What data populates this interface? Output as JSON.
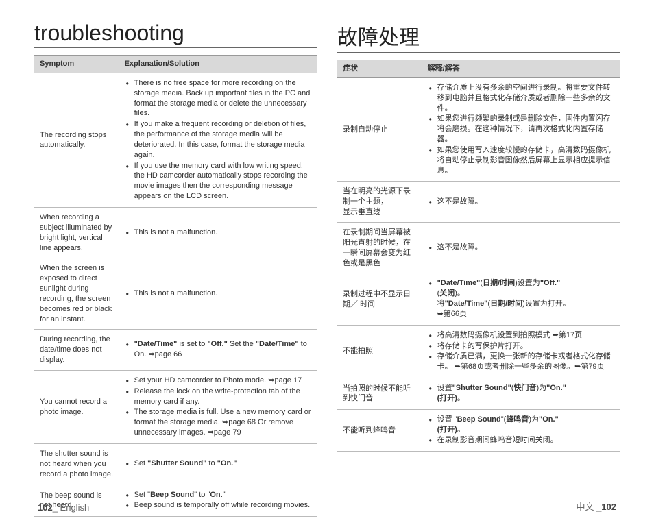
{
  "left": {
    "title": "troubleshooting",
    "header_symptom": "Symptom",
    "header_solution": "Explanation/Solution",
    "rows": [
      {
        "symptom": "The recording stops automatically.",
        "items": [
          "There is no free space for more recording on the storage media. Back up important files in the PC and format the storage media or delete the unnecessary files.",
          "If you make a frequent recording or deletion of files, the performance of the storage media will be deteriorated. In this case, format the storage media again.",
          "If you use the memory card with low writing speed, the HD camcorder automatically stops recording the movie images then the corresponding message appears on the LCD screen."
        ]
      },
      {
        "symptom": "When recording a subject illuminated by bright light, vertical line appears.",
        "items": [
          "This is not a malfunction."
        ]
      },
      {
        "symptom": "When the screen is exposed to direct sunlight during recording, the screen becomes red or black for an instant.",
        "items": [
          "This is not a malfunction."
        ]
      },
      {
        "symptom": "During recording, the date/time does not display.",
        "items": [
          "<b>\"Date/Time\"</b> is set to <b>\"Off.\"</b> Set the <b>\"Date/Time\"</b> to On. ➥page 66"
        ]
      },
      {
        "symptom": "You cannot record a photo image.",
        "items": [
          "Set your HD camcorder to Photo mode. ➥page 17",
          "Release the lock on the write-protection tab of the memory card if any.",
          "The storage media is full. Use a new memory card or format the storage media. ➥page 68 Or remove unnecessary images. ➥page 79"
        ]
      },
      {
        "symptom": "The shutter sound is not heard when you record a photo image.",
        "items": [
          "Set <b>\"Shutter Sound\"</b> to <b>\"On.\"</b>"
        ]
      },
      {
        "symptom": "The beep sound is not heard.",
        "items": [
          "Set \"<b>Beep Sound</b>\" to \"<b>On.</b>\"",
          "Beep sound is temporally off while recording movies."
        ]
      }
    ],
    "footer_num": "102",
    "footer_lang": "_ English"
  },
  "right": {
    "title": "故障处理",
    "header_symptom": "症状",
    "header_solution": "解释/解答",
    "rows": [
      {
        "symptom": "录制自动停止",
        "items": [
          "存储介质上没有多余的空间进行录制。将重要文件转移到电脑并且格式化存储介质或者删除一些多余的文件。",
          "如果您进行频繁的录制或是删除文件，固件内置闪存将会磨损。在这种情况下，请再次格式化内置存储器。",
          "如果您使用写入速度较慢的存储卡，高清数码摄像机将自动停止录制影音图像然后屏幕上显示相应提示信息。"
        ]
      },
      {
        "symptom": "当在明亮的光源下录制一个主题，<br>显示垂直线",
        "items": [
          "这不是故障。"
        ]
      },
      {
        "symptom": "在录制期间当屏幕被阳光直射的时候，在一瞬间屏幕会变为红色或是黑色",
        "items": [
          "这不是故障。"
        ]
      },
      {
        "symptom": "录制过程中不显示日期／ 时间",
        "items": [
          "<b>\"Date/Time\"</b>(<b>日期/时间</b>)设置为<b>\"Off.\"</b><br>(<b>关闭</b>)。<br>将<b>\"Date/Time\"</b>(<b>日期/时间</b>)设置为打开。<br>➥第66页"
        ]
      },
      {
        "symptom": "不能拍照",
        "items": [
          "将高清数码摄像机设置到拍照模式 ➥第17页",
          "将存储卡的写保护片打开。",
          "存储介质已满，更换一张新的存储卡或者格式化存储卡。 ➥第68页或者删除一些多余的图像。➥第79页"
        ]
      },
      {
        "symptom": "当拍照的时候不能听到快门音",
        "items": [
          "设置<b>\"Shutter Sound\"</b>(<b>快门音</b>)为<b>\"On.\"<br>(打开)</b>。"
        ]
      },
      {
        "symptom": "不能听到蜂鸣音",
        "items": [
          "设置 \"<b>Beep Sound</b>\"(<b>蜂鸣音</b>)为<b>\"On.\"<br>(打开)</b>。",
          "在录制影音期间蜂鸣音短时间关闭。"
        ]
      }
    ],
    "footer_lang": "中文 _",
    "footer_num": "102"
  }
}
